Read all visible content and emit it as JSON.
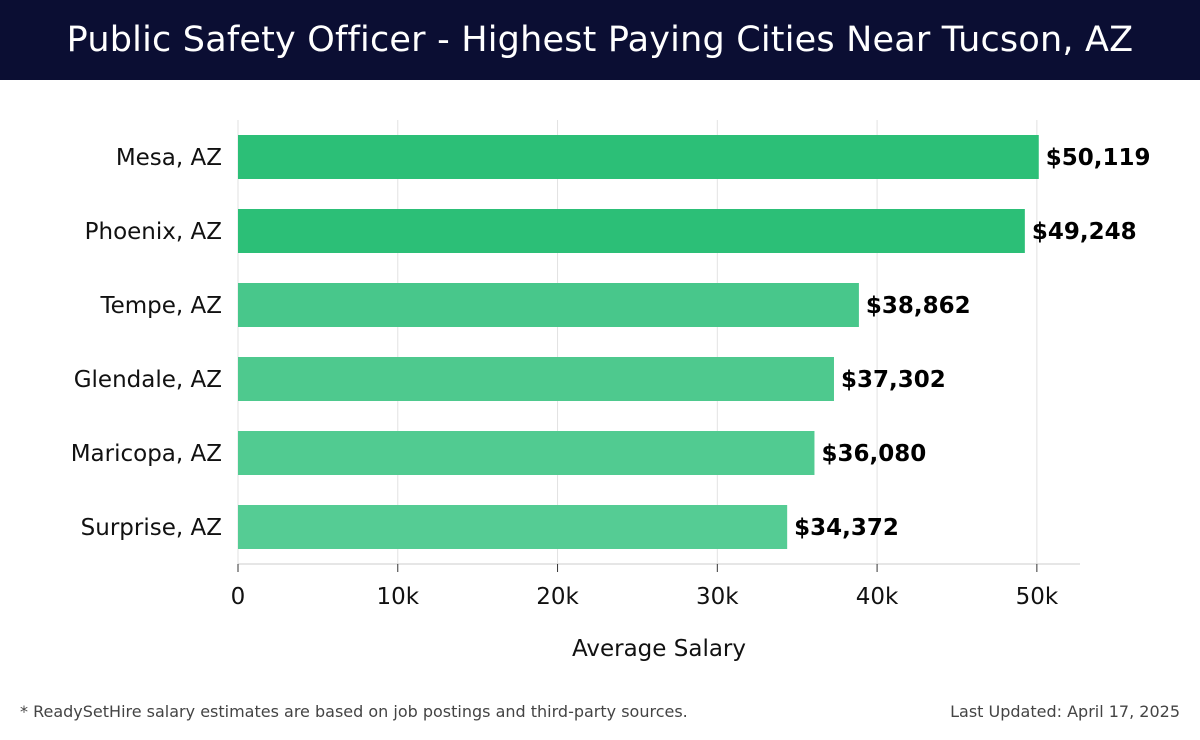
{
  "header": {
    "title": "Public Safety Officer - Highest Paying Cities Near Tucson, AZ"
  },
  "chart_data": {
    "type": "bar",
    "orientation": "horizontal",
    "categories": [
      "Mesa, AZ",
      "Phoenix, AZ",
      "Tempe, AZ",
      "Glendale, AZ",
      "Maricopa, AZ",
      "Surprise, AZ"
    ],
    "values": [
      50119,
      49248,
      38862,
      37302,
      36080,
      34372
    ],
    "data_labels": [
      "$50,119",
      "$49,248",
      "$38,862",
      "$37,302",
      "$36,080",
      "$34,372"
    ],
    "bar_colors": [
      "#2cbf77",
      "#2cbf77",
      "#48c78b",
      "#4ec98e",
      "#51cb91",
      "#55cc94"
    ],
    "title": "",
    "xlabel": "Average Salary",
    "ylabel": "",
    "xlim": [
      0,
      52700
    ],
    "x_ticks": [
      0,
      10000,
      20000,
      30000,
      40000,
      50000
    ],
    "x_tick_labels": [
      "0",
      "10k",
      "20k",
      "30k",
      "40k",
      "50k"
    ],
    "grid": true,
    "legend": "none"
  },
  "footer": {
    "note": "* ReadySetHire salary estimates are based on job postings and third-party sources.",
    "updated": "Last Updated: April 17, 2025"
  }
}
